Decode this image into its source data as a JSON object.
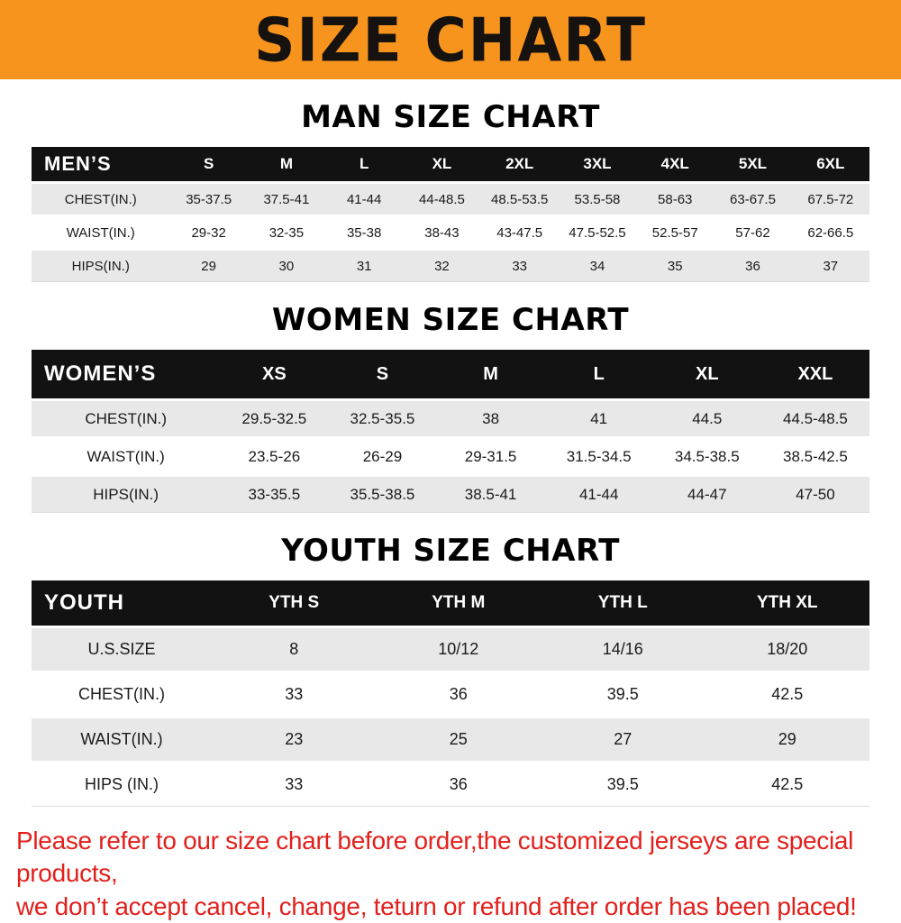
{
  "banner": {
    "title": "SIZE CHART"
  },
  "colors": {
    "banner_bg": "#F7941E",
    "banner_text": "#161210",
    "header_bg": "#121212",
    "header_text": "#ffffff",
    "stripe": "#e8e8e8",
    "note_text": "#e2201c"
  },
  "sections": [
    {
      "heading": "MAN SIZE CHART",
      "table": {
        "corner_label": "MEN’S",
        "columns": [
          "S",
          "M",
          "L",
          "XL",
          "2XL",
          "3XL",
          "4XL",
          "5XL",
          "6XL"
        ],
        "rows": [
          {
            "label": "CHEST(IN.)",
            "values": [
              "35-37.5",
              "37.5-41",
              "41-44",
              "44-48.5",
              "48.5-53.5",
              "53.5-58",
              "58-63",
              "63-67.5",
              "67.5-72"
            ]
          },
          {
            "label": "WAIST(IN.)",
            "values": [
              "29-32",
              "32-35",
              "35-38",
              "38-43",
              "43-47.5",
              "47.5-52.5",
              "52.5-57",
              "57-62",
              "62-66.5"
            ]
          },
          {
            "label": "HIPS(IN.)",
            "values": [
              "29",
              "30",
              "31",
              "32",
              "33",
              "34",
              "35",
              "36",
              "37"
            ]
          }
        ]
      }
    },
    {
      "heading": "WOMEN SIZE CHART",
      "table": {
        "corner_label": "WOMEN’S",
        "columns": [
          "XS",
          "S",
          "M",
          "L",
          "XL",
          "XXL"
        ],
        "rows": [
          {
            "label": "CHEST(IN.)",
            "values": [
              "29.5-32.5",
              "32.5-35.5",
              "38",
              "41",
              "44.5",
              "44.5-48.5"
            ]
          },
          {
            "label": "WAIST(IN.)",
            "values": [
              "23.5-26",
              "26-29",
              "29-31.5",
              "31.5-34.5",
              "34.5-38.5",
              "38.5-42.5"
            ]
          },
          {
            "label": "HIPS(IN.)",
            "values": [
              "33-35.5",
              "35.5-38.5",
              "38.5-41",
              "41-44",
              "44-47",
              "47-50"
            ]
          }
        ]
      }
    },
    {
      "heading": "YOUTH SIZE CHART",
      "table": {
        "corner_label": "YOUTH",
        "columns": [
          "YTH S",
          "YTH M",
          "YTH L",
          "YTH XL"
        ],
        "rows": [
          {
            "label": "U.S.SIZE",
            "values": [
              "8",
              "10/12",
              "14/16",
              "18/20"
            ]
          },
          {
            "label": "CHEST(IN.)",
            "values": [
              "33",
              "36",
              "39.5",
              "42.5"
            ]
          },
          {
            "label": "WAIST(IN.)",
            "values": [
              "23",
              "25",
              "27",
              "29"
            ]
          },
          {
            "label": "HIPS (IN.)",
            "values": [
              "33",
              "36",
              "39.5",
              "42.5"
            ]
          }
        ]
      }
    }
  ],
  "note": {
    "line1": "Please refer to our size chart before order,the customized jerseys are special products,",
    "line2": "we don’t accept cancel, change, teturn or refund after order has been placed!"
  }
}
